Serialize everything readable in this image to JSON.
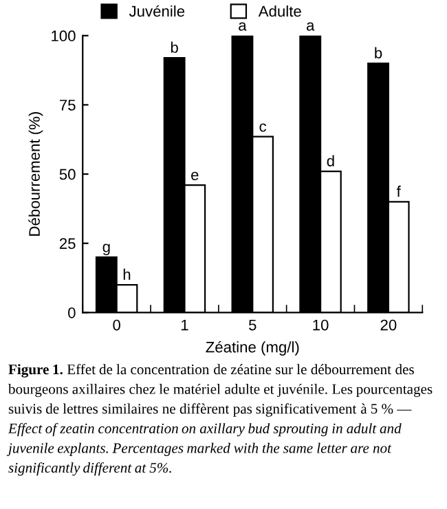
{
  "chart_data": {
    "type": "bar",
    "xlabel": "Zéatine (mg/l)",
    "ylabel": "Débourrement (%)",
    "categories": [
      "0",
      "1",
      "5",
      "10",
      "20"
    ],
    "series": [
      {
        "name": "Juvénile",
        "color": "#000000",
        "values": [
          20,
          92,
          100,
          100,
          90
        ],
        "value_labels": [
          "g",
          "b",
          "a",
          "a",
          "b"
        ]
      },
      {
        "name": "Adulte",
        "color": "#ffffff",
        "values": [
          10,
          46,
          63.5,
          51,
          40
        ],
        "value_labels": [
          "h",
          "e",
          "c",
          "d",
          "f"
        ]
      }
    ],
    "ylim": [
      0,
      100
    ],
    "yticks": [
      0,
      25,
      50,
      75,
      100
    ],
    "grid": false,
    "legend": "top",
    "annotations": [
      "Figure 1.",
      "Effet de la concentration de zéatine sur le débourrement des bourgeons axillaires chez le matériel adulte et juvénile. Les pourcentages suivis de lettres similaires ne diffèrent pas significativement à 5 % —",
      "Effect of zeatin concentration on axillary bud sprouting in adult and juvenile explants. Percentages marked with the same letter are not significantly different at 5%."
    ]
  }
}
